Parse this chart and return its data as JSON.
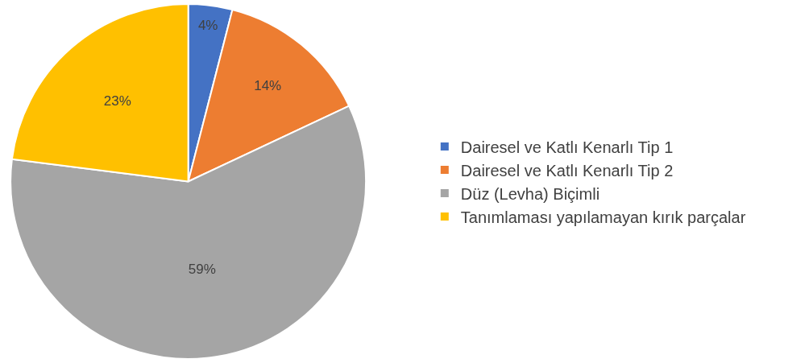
{
  "chart_data": {
    "type": "pie",
    "categories": [
      "Dairesel ve Katlı Kenarlı Tip 1",
      "Dairesel ve Katlı Kenarlı Tip 2",
      "Düz (Levha) Biçimli",
      "Tanımlaması yapılamayan kırık parçalar"
    ],
    "values": [
      4,
      14,
      59,
      23
    ],
    "value_labels": [
      "4%",
      "14%",
      "59%",
      "23%"
    ],
    "colors": [
      "#4472c4",
      "#ed7d31",
      "#a5a5a5",
      "#ffc000"
    ],
    "legend": "right"
  }
}
